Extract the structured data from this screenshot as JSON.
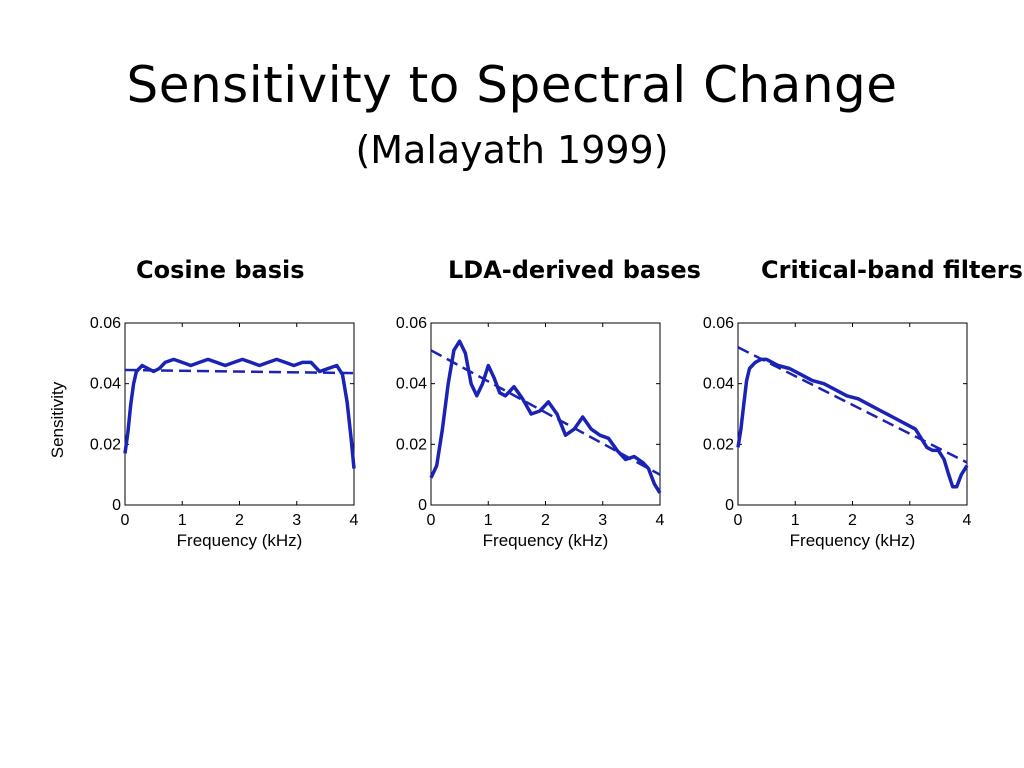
{
  "slide": {
    "title": "Sensitivity to Spectral Change",
    "subtitle": "(Malayath 1999)"
  },
  "colors": {
    "series": "#1a23b5",
    "axis": "#000000"
  },
  "chart_data": [
    {
      "type": "line",
      "title": "Cosine basis",
      "xlabel": "Frequency (kHz)",
      "ylabel": "Sensitivity",
      "xlim": [
        0,
        4
      ],
      "ylim": [
        0,
        0.06
      ],
      "xticks": [
        "0",
        "1",
        "2",
        "3",
        "4"
      ],
      "yticks": [
        "0",
        "0.02",
        "0.04",
        "0.06"
      ],
      "series": [
        {
          "style": "solid",
          "x": [
            0.0,
            0.05,
            0.1,
            0.15,
            0.2,
            0.3,
            0.4,
            0.5,
            0.6,
            0.7,
            0.85,
            1.0,
            1.15,
            1.3,
            1.45,
            1.6,
            1.75,
            1.9,
            2.05,
            2.2,
            2.35,
            2.5,
            2.65,
            2.8,
            2.95,
            3.1,
            3.25,
            3.4,
            3.55,
            3.7,
            3.8,
            3.88,
            3.95,
            4.0
          ],
          "y": [
            0.017,
            0.024,
            0.033,
            0.04,
            0.044,
            0.046,
            0.045,
            0.044,
            0.045,
            0.047,
            0.048,
            0.047,
            0.046,
            0.047,
            0.048,
            0.047,
            0.046,
            0.047,
            0.048,
            0.047,
            0.046,
            0.047,
            0.048,
            0.047,
            0.046,
            0.047,
            0.047,
            0.044,
            0.045,
            0.046,
            0.043,
            0.034,
            0.022,
            0.012
          ]
        },
        {
          "style": "dashed",
          "x": [
            0.0,
            4.0
          ],
          "y": [
            0.0445,
            0.0435
          ]
        }
      ]
    },
    {
      "type": "line",
      "title": "LDA-derived bases",
      "xlabel": "Frequency (kHz)",
      "ylabel": "",
      "xlim": [
        0,
        4
      ],
      "ylim": [
        0,
        0.06
      ],
      "xticks": [
        "0",
        "1",
        "2",
        "3",
        "4"
      ],
      "yticks": [
        "0",
        "0.02",
        "0.04",
        "0.06"
      ],
      "series": [
        {
          "style": "solid",
          "x": [
            0.0,
            0.1,
            0.2,
            0.3,
            0.4,
            0.5,
            0.6,
            0.7,
            0.8,
            0.9,
            1.0,
            1.1,
            1.2,
            1.3,
            1.45,
            1.6,
            1.75,
            1.9,
            2.05,
            2.2,
            2.35,
            2.5,
            2.65,
            2.8,
            2.95,
            3.1,
            3.25,
            3.4,
            3.55,
            3.7,
            3.8,
            3.9,
            4.0
          ],
          "y": [
            0.009,
            0.013,
            0.025,
            0.04,
            0.051,
            0.054,
            0.05,
            0.04,
            0.036,
            0.04,
            0.046,
            0.042,
            0.037,
            0.036,
            0.039,
            0.035,
            0.03,
            0.031,
            0.034,
            0.03,
            0.023,
            0.025,
            0.029,
            0.025,
            0.023,
            0.022,
            0.018,
            0.015,
            0.016,
            0.014,
            0.012,
            0.007,
            0.004
          ]
        },
        {
          "style": "dashed",
          "x": [
            0.0,
            4.0
          ],
          "y": [
            0.051,
            0.01
          ]
        }
      ]
    },
    {
      "type": "line",
      "title": "Critical-band filters",
      "xlabel": "Frequency (kHz)",
      "ylabel": "",
      "xlim": [
        0,
        4
      ],
      "ylim": [
        0,
        0.06
      ],
      "xticks": [
        "0",
        "1",
        "2",
        "3",
        "4"
      ],
      "yticks": [
        "0",
        "0.02",
        "0.04",
        "0.06"
      ],
      "series": [
        {
          "style": "solid",
          "x": [
            0.0,
            0.05,
            0.1,
            0.15,
            0.2,
            0.3,
            0.4,
            0.5,
            0.7,
            0.9,
            1.1,
            1.3,
            1.5,
            1.7,
            1.9,
            2.1,
            2.3,
            2.5,
            2.7,
            2.9,
            3.1,
            3.2,
            3.3,
            3.4,
            3.5,
            3.6,
            3.68,
            3.75,
            3.82,
            3.9,
            4.0
          ],
          "y": [
            0.019,
            0.025,
            0.033,
            0.041,
            0.045,
            0.047,
            0.048,
            0.048,
            0.046,
            0.045,
            0.043,
            0.041,
            0.04,
            0.038,
            0.036,
            0.035,
            0.033,
            0.031,
            0.029,
            0.027,
            0.025,
            0.022,
            0.019,
            0.018,
            0.018,
            0.015,
            0.01,
            0.006,
            0.006,
            0.01,
            0.013
          ]
        },
        {
          "style": "dashed",
          "x": [
            0.0,
            4.0
          ],
          "y": [
            0.052,
            0.014
          ]
        }
      ]
    }
  ]
}
